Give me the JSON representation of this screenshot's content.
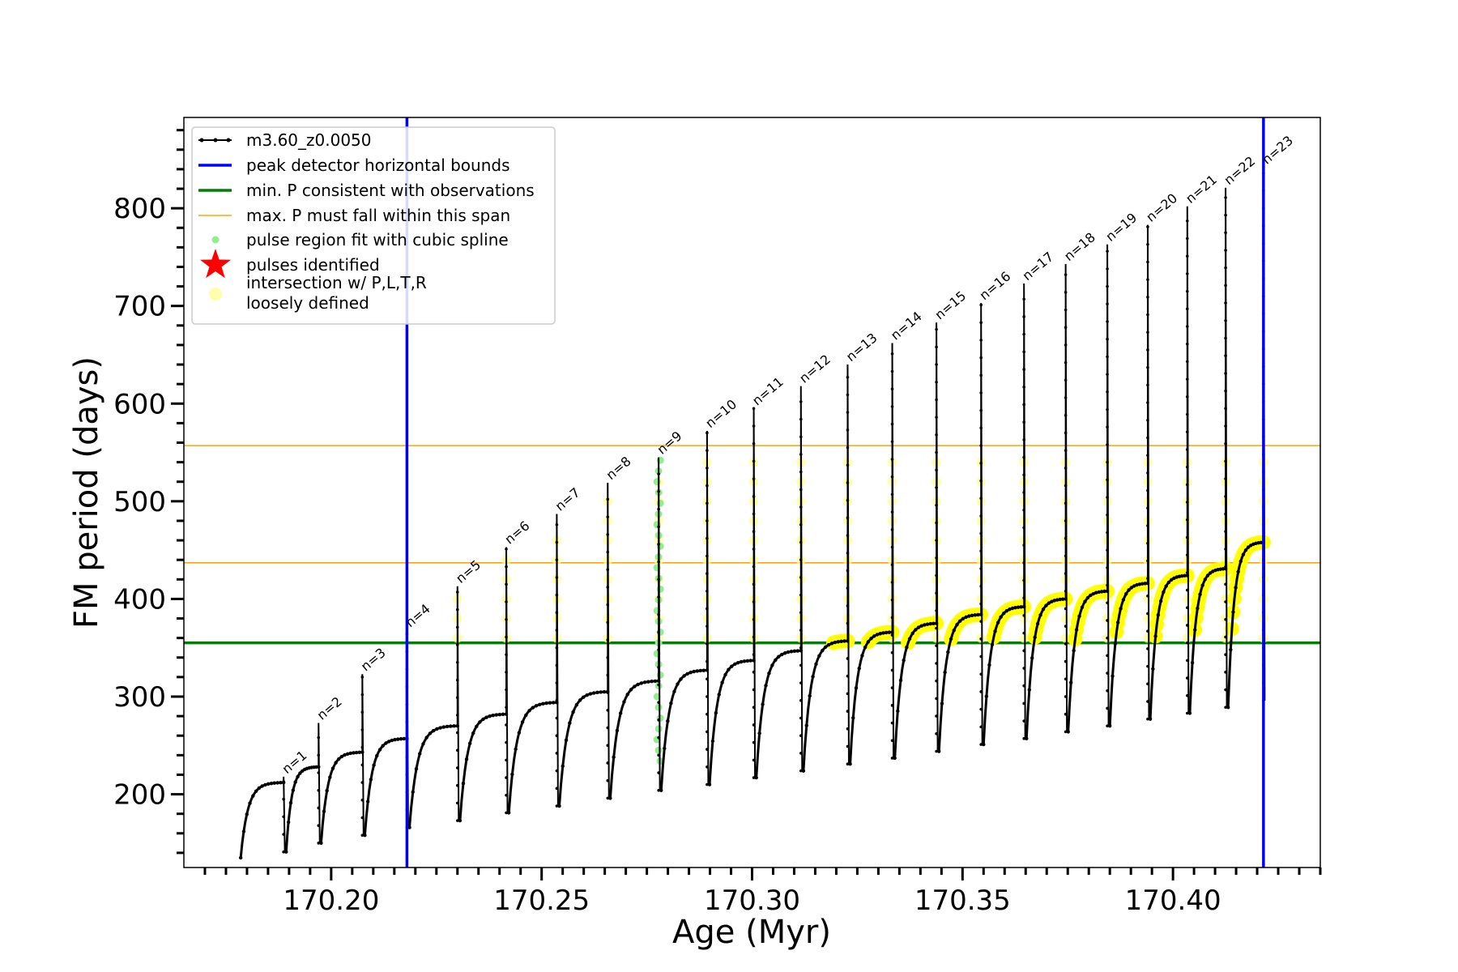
{
  "chart_data": {
    "type": "line",
    "xlabel": "Age (Myr)",
    "ylabel": "FM period (days)",
    "xlim": [
      170.165,
      170.435
    ],
    "ylim": [
      125,
      893
    ],
    "xticks": [
      170.2,
      170.25,
      170.3,
      170.35,
      170.4
    ],
    "xtick_labels": [
      "170.20",
      "170.25",
      "170.30",
      "170.35",
      "170.40"
    ],
    "xminor_step": 0.005,
    "yticks": [
      200,
      300,
      400,
      500,
      600,
      700,
      800
    ],
    "ytick_labels": [
      "200",
      "300",
      "400",
      "500",
      "600",
      "700",
      "800"
    ],
    "yminor_step": 20,
    "legend_position": "upper-left",
    "legend": [
      {
        "label": "m3.60_z0.0050",
        "kind": "line-marker",
        "color": "#000000"
      },
      {
        "label": "peak detector horizontal bounds",
        "kind": "line",
        "color": "#0000ff"
      },
      {
        "label": "min. P consistent with observations",
        "kind": "line",
        "color": "#008000"
      },
      {
        "label": "max. P must fall within this span",
        "kind": "line",
        "color": "#ffa500"
      },
      {
        "label": "pulse region fit with cubic spline",
        "kind": "dot",
        "color": "#90ee90"
      },
      {
        "label": "pulses identified",
        "kind": "star",
        "color": "#ff0000"
      },
      {
        "label": "intersection w/ P,L,T,R",
        "label2": "loosely defined",
        "kind": "dot",
        "color": "#ffffaa"
      }
    ],
    "vertical_lines": [
      {
        "x": 170.218,
        "color": "#0000ff"
      },
      {
        "x": 170.4215,
        "color": "#0000ff"
      }
    ],
    "horizontal_lines": [
      {
        "y": 355,
        "color": "#008000"
      },
      {
        "y": 557,
        "color": "#ffa500"
      },
      {
        "y": 437,
        "color": "#ffa500"
      }
    ],
    "start": {
      "x": 170.1785,
      "y": 168
    },
    "pulses": [
      {
        "label": "n=1",
        "x": 170.1887,
        "peak": 218,
        "pre": 212,
        "min": 141,
        "first_min": 135
      },
      {
        "label": "n=2",
        "x": 170.197,
        "peak": 273,
        "pre": 228,
        "min": 150
      },
      {
        "label": "n=3",
        "x": 170.2074,
        "peak": 323,
        "pre": 243,
        "min": 158
      },
      {
        "label": "n=4",
        "x": 170.218,
        "peak": 368,
        "pre": 257,
        "min": 166
      },
      {
        "label": "n=5",
        "x": 170.23,
        "peak": 413,
        "pre": 270,
        "min": 173
      },
      {
        "label": "n=6",
        "x": 170.2416,
        "peak": 453,
        "pre": 282,
        "min": 181
      },
      {
        "label": "n=7",
        "x": 170.2536,
        "peak": 487,
        "pre": 294,
        "min": 188
      },
      {
        "label": "n=8",
        "x": 170.2657,
        "peak": 519,
        "pre": 305,
        "min": 196
      },
      {
        "label": "n=9",
        "x": 170.2778,
        "peak": 545,
        "pre": 316,
        "min": 204
      },
      {
        "label": "n=10",
        "x": 170.2893,
        "peak": 572,
        "pre": 327,
        "min": 210
      },
      {
        "label": "n=11",
        "x": 170.3004,
        "peak": 595,
        "pre": 337,
        "min": 217
      },
      {
        "label": "n=12",
        "x": 170.3116,
        "peak": 618,
        "pre": 347,
        "min": 224
      },
      {
        "label": "n=13",
        "x": 170.3227,
        "peak": 640,
        "pre": 357,
        "min": 231
      },
      {
        "label": "n=14",
        "x": 170.3333,
        "peak": 662,
        "pre": 366,
        "min": 237
      },
      {
        "label": "n=15",
        "x": 170.3438,
        "peak": 683,
        "pre": 375,
        "min": 244
      },
      {
        "label": "n=16",
        "x": 170.3544,
        "peak": 703,
        "pre": 384,
        "min": 251
      },
      {
        "label": "n=17",
        "x": 170.3646,
        "peak": 723,
        "pre": 392,
        "min": 257
      },
      {
        "label": "n=18",
        "x": 170.3745,
        "peak": 743,
        "pre": 400,
        "min": 264
      },
      {
        "label": "n=19",
        "x": 170.3844,
        "peak": 763,
        "pre": 408,
        "min": 270
      },
      {
        "label": "n=20",
        "x": 170.394,
        "peak": 783,
        "pre": 416,
        "min": 277
      },
      {
        "label": "n=21",
        "x": 170.4034,
        "peak": 802,
        "pre": 424,
        "min": 283
      },
      {
        "label": "n=22",
        "x": 170.4125,
        "peak": 821,
        "pre": 431,
        "min": 289
      },
      {
        "label": "n=23",
        "x": 170.4215,
        "peak": 842,
        "pre": 458,
        "min": 296
      }
    ]
  }
}
